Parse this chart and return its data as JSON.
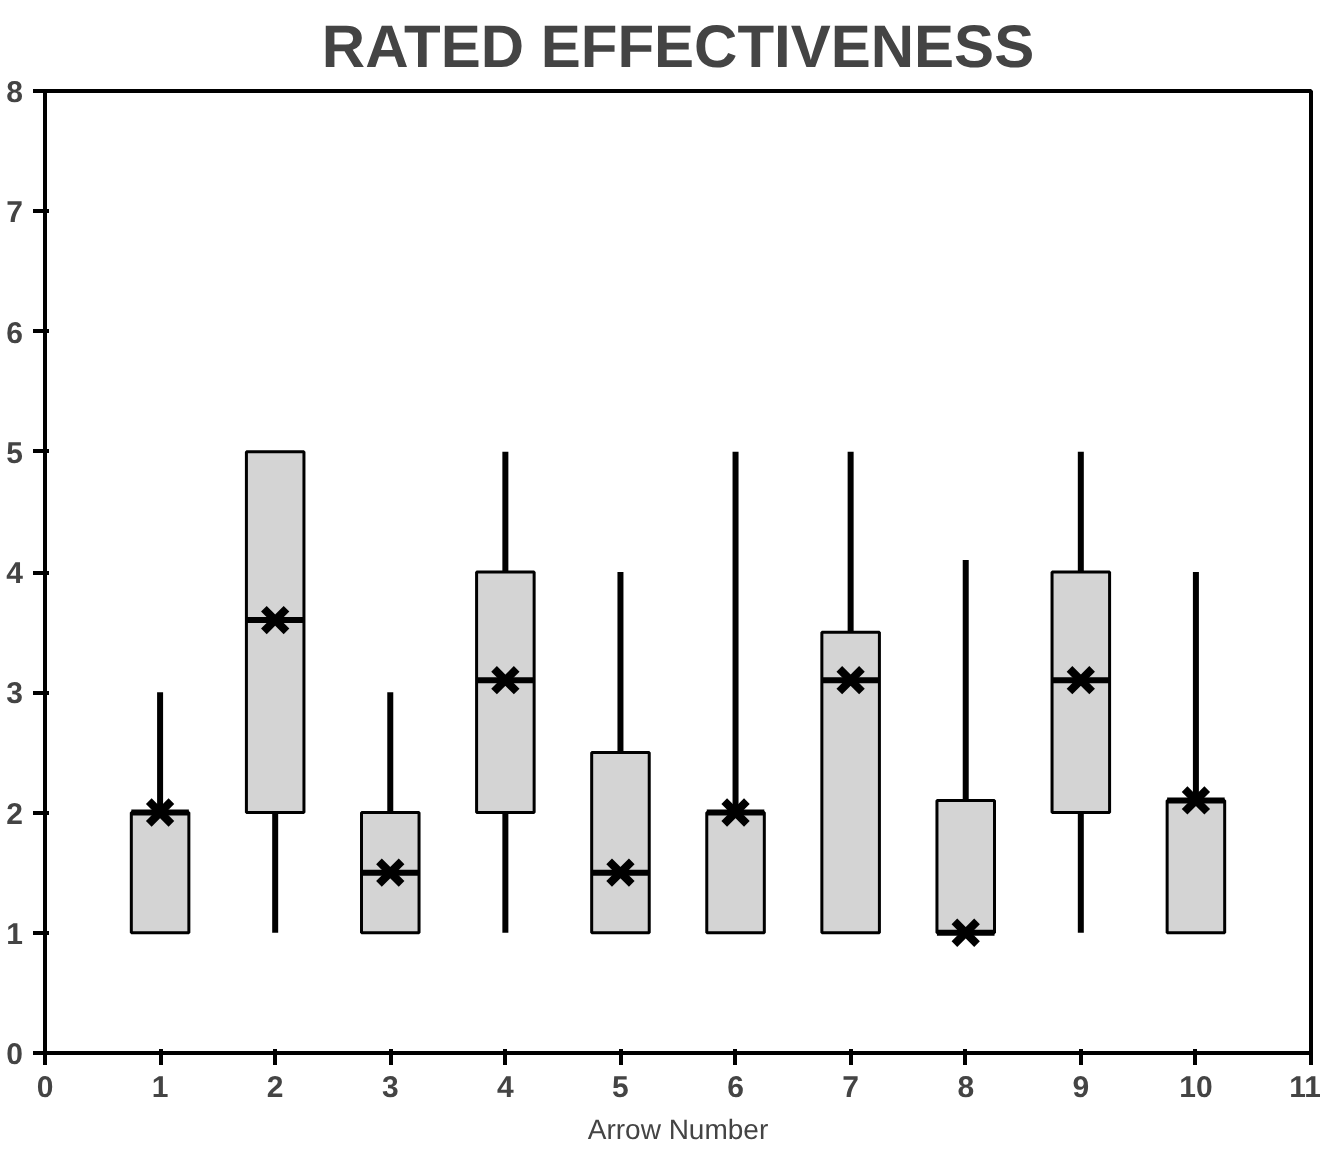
{
  "chart_data": {
    "type": "box",
    "title": "RATED EFFECTIVENESS",
    "xlabel": "Arrow Number",
    "x": [
      1,
      2,
      3,
      4,
      5,
      6,
      7,
      8,
      9,
      10
    ],
    "color": "#d4d4d4",
    "marker": "cross",
    "grid": false,
    "boxes": [
      {
        "low": 1,
        "q1": 1,
        "median": 2,
        "q3": 2,
        "high": 3,
        "mean": 2
      },
      {
        "low": 1,
        "q1": 2,
        "median": 3.6,
        "q3": 5,
        "high": 5,
        "mean": 3.6
      },
      {
        "low": 1,
        "q1": 1,
        "median": 1.5,
        "q3": 2,
        "high": 3,
        "mean": 1.5
      },
      {
        "low": 1,
        "q1": 2,
        "median": 3.1,
        "q3": 4,
        "high": 5,
        "mean": 3.1
      },
      {
        "low": 1,
        "q1": 1,
        "median": 1.5,
        "q3": 2.5,
        "high": 4,
        "mean": 1.5
      },
      {
        "low": 1,
        "q1": 1,
        "median": 2,
        "q3": 2,
        "high": 5,
        "mean": 2
      },
      {
        "low": 1,
        "q1": 1,
        "median": 3.1,
        "q3": 3.5,
        "high": 5,
        "mean": 3.1
      },
      {
        "low": 1,
        "q1": 1,
        "median": 1,
        "q3": 2.1,
        "high": 4.1,
        "mean": 1
      },
      {
        "low": 1,
        "q1": 2,
        "median": 3.1,
        "q3": 4,
        "high": 5,
        "mean": 3.1
      },
      {
        "low": 1,
        "q1": 1,
        "median": 2.1,
        "q3": 2.1,
        "high": 4,
        "mean": 2.1
      }
    ],
    "xlim": [
      0,
      11
    ],
    "xticks": [
      0,
      1,
      2,
      3,
      4,
      5,
      6,
      7,
      8,
      9,
      10,
      11
    ],
    "ylim": [
      0,
      8
    ],
    "yticks": [
      0,
      1,
      2,
      3,
      4,
      5,
      6,
      7,
      8
    ]
  }
}
